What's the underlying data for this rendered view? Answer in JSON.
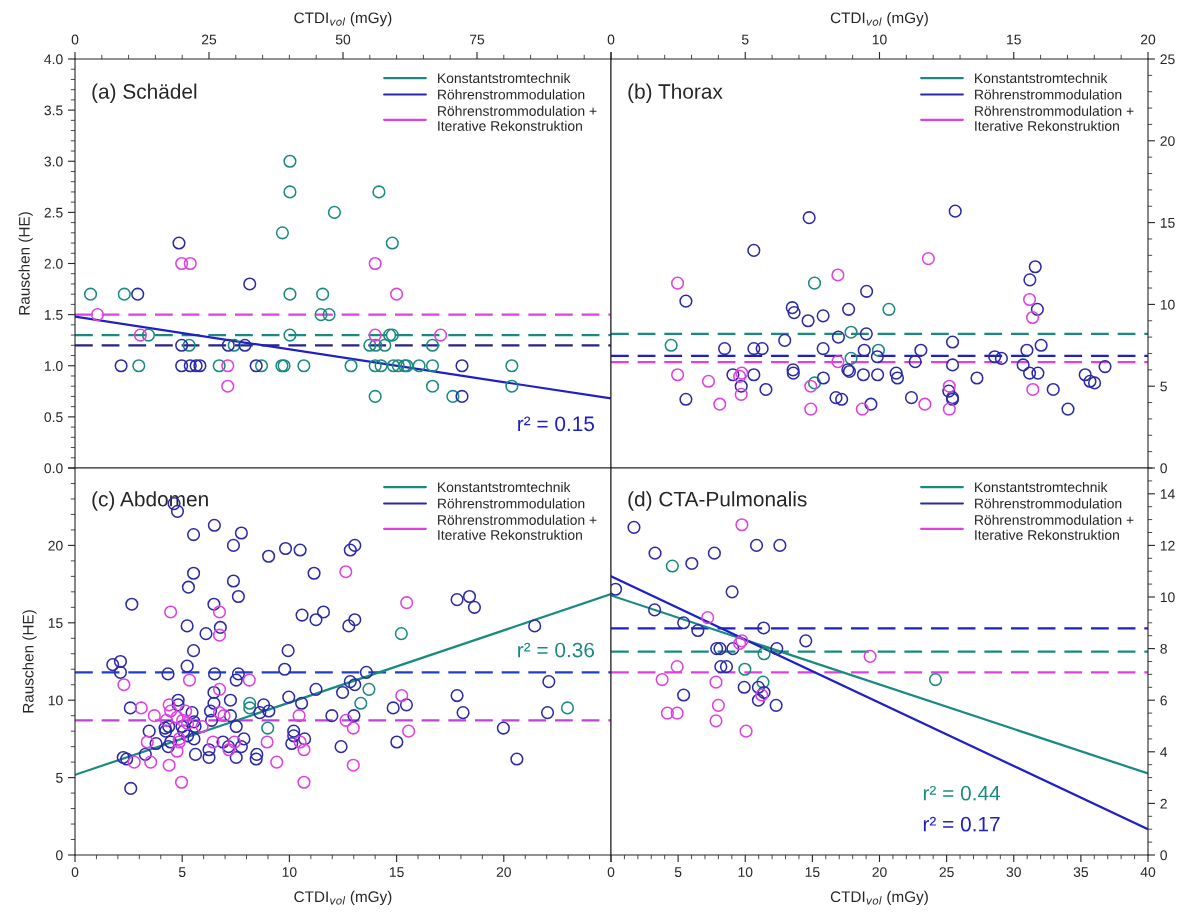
{
  "chart_data": [
    {
      "type": "scatter",
      "title": "(a) Schädel",
      "xlabel": "CTDI$_{vol}$ (mGy)",
      "ylabel": "Rauschen (HE)",
      "xlim": [
        0,
        100
      ],
      "ylim": [
        0,
        4
      ],
      "xticks": [
        0,
        25,
        50,
        75,
        {
          "value": 100,
          "label": null
        }
      ],
      "yticks": [
        {
          "value": 0,
          "label": "0.0"
        },
        {
          "value": 0.5,
          "label": "0.5"
        },
        {
          "value": 1,
          "label": "1.0"
        },
        {
          "value": 1.5,
          "label": "1.5"
        },
        {
          "value": 2,
          "label": "2.0"
        },
        {
          "value": 2.5,
          "label": "2.5"
        },
        {
          "value": 3,
          "label": "3.0"
        },
        {
          "value": 3.5,
          "label": "3.5"
        },
        {
          "value": 4,
          "label": "4.0"
        }
      ],
      "marker": "circle",
      "legend": "top right",
      "annotations": [
        "r² = 0.15"
      ],
      "series": [
        {
          "type": "scatter",
          "name": "Konstantstromtechnik",
          "color": "#1a8a80",
          "x": [
            2.9,
            9.2,
            11.9,
            13.7,
            21.3,
            26.9,
            29.7,
            34.8,
            38.6,
            39.0,
            38.7,
            40.1,
            40.1,
            40.1,
            40.1,
            42.7,
            46.2,
            45.9,
            47.4,
            48.4,
            51.5,
            55.0,
            56.1,
            56.0,
            56.0,
            56.7,
            57.1,
            57.8,
            58.7,
            59.2,
            59.2,
            59.4,
            60.3,
            61.5,
            61.9,
            64.2,
            66.7,
            66.7,
            66.7,
            70.5,
            81.5,
            81.5
          ],
          "values": [
            1.7,
            1.7,
            1.0,
            1.3,
            1.2,
            1.0,
            1.2,
            1.0,
            1.0,
            1.0,
            2.3,
            3.0,
            2.7,
            1.7,
            1.3,
            1.0,
            1.7,
            1.5,
            1.5,
            2.5,
            1.0,
            1.2,
            1.2,
            1.0,
            0.7,
            2.7,
            1.0,
            1.2,
            1.3,
            1.3,
            2.2,
            1.0,
            1.0,
            1.0,
            1.0,
            1.0,
            1.2,
            1.0,
            0.8,
            0.7,
            1.0,
            0.8
          ]
        },
        {
          "type": "scatter",
          "name": "Röhrenstrommodulation",
          "color": "#2a2aa8",
          "x": [
            8.6,
            11.7,
            19.4,
            19.9,
            19.9,
            21.5,
            22.6,
            23.3,
            28.6,
            31.7,
            32.6,
            33.8,
            72.2,
            72.2
          ],
          "values": [
            1.0,
            1.7,
            2.2,
            1.2,
            1.0,
            1.0,
            1.0,
            1.0,
            1.2,
            1.2,
            1.8,
            1.0,
            1.0,
            0.7
          ]
        },
        {
          "type": "scatter",
          "name": "Röhrenstrommodulation +\nIterative Rekonstruktion",
          "color": "#e040e0",
          "x": [
            4.2,
            12.2,
            19.9,
            21.5,
            28.5,
            28.5,
            56.0,
            56.0,
            60.0,
            68.2
          ],
          "values": [
            1.5,
            1.3,
            2.0,
            2.0,
            1.0,
            0.8,
            2.0,
            1.3,
            1.7,
            1.3
          ]
        },
        {
          "type": "line",
          "marker": "none",
          "color": "#1f1fc8",
          "x": [
            0,
            100
          ],
          "values": [
            1.48,
            0.68
          ]
        }
      ],
      "ref_lines": [
        {
          "axis": "y",
          "value": 1.5,
          "color": "#e040e0",
          "line_style": "dashed"
        },
        {
          "axis": "y",
          "value": 1.3,
          "color": "#1a8a80",
          "line_style": "dashed"
        },
        {
          "axis": "y",
          "value": 1.2,
          "color": "#23238a",
          "line_style": "dashed"
        }
      ]
    },
    {
      "type": "scatter",
      "title": "(b) Thorax",
      "xlabel": "CTDI$_{vol}$ (mGy)",
      "xlim": [
        0,
        20
      ],
      "ylim": [
        0,
        25
      ],
      "xticks": [
        0,
        5,
        10,
        15,
        20
      ],
      "yticks": [
        0,
        5,
        10,
        15,
        20,
        25
      ],
      "marker": "circle",
      "legend": "top right",
      "series": [
        {
          "type": "scatter",
          "name": "Konstantstromtechnik",
          "color": "#1a8a80",
          "x": [
            2.24,
            7.58,
            8.94,
            10.35,
            9.96,
            8.94,
            7.58
          ],
          "values": [
            7.5,
            11.3,
            8.3,
            9.7,
            7.2,
            6.7,
            5.2
          ]
        },
        {
          "type": "scatter",
          "name": "Röhrenstrommodulation",
          "color": "#2a2aa8",
          "x": [
            2.79,
            2.79,
            4.23,
            4.54,
            4.85,
            5.32,
            5.32,
            5.32,
            5.63,
            5.77,
            6.47,
            6.75,
            6.82,
            6.78,
            6.79,
            7.34,
            7.38,
            7.9,
            7.9,
            7.91,
            8.38,
            8.59,
            8.47,
            8.85,
            8.82,
            8.88,
            9.43,
            9.4,
            9.52,
            9.51,
            9.68,
            9.92,
            9.93,
            10.62,
            10.67,
            11.19,
            11.33,
            11.54,
            12.82,
            12.72,
            12.72,
            12.58,
            12.72,
            12.72,
            13.63,
            14.29,
            14.54,
            15.35,
            15.49,
            15.6,
            15.8,
            15.88,
            15.59,
            15.9,
            16.02,
            16.47,
            17.02,
            17.66,
            17.84,
            18.01,
            18.4
          ],
          "values": [
            10.2,
            4.2,
            7.3,
            5.7,
            5.0,
            13.3,
            7.3,
            5.7,
            7.3,
            4.8,
            7.8,
            9.8,
            9.5,
            6.0,
            5.8,
            9.0,
            15.3,
            9.3,
            7.3,
            5.5,
            4.3,
            4.2,
            8.0,
            9.7,
            6.0,
            5.9,
            7.2,
            5.7,
            10.8,
            8.2,
            3.9,
            6.8,
            5.7,
            5.8,
            5.5,
            4.3,
            6.5,
            7.2,
            15.7,
            7.7,
            6.3,
            4.7,
            4.3,
            4.2,
            5.5,
            6.8,
            6.7,
            6.3,
            7.2,
            11.5,
            12.3,
            9.7,
            5.8,
            5.8,
            7.5,
            4.8,
            3.6,
            5.7,
            5.3,
            5.2,
            6.2
          ]
        },
        {
          "type": "scatter",
          "name": "Röhrenstrommodulation +\nIterative Rekonstruktion",
          "color": "#e040e0",
          "x": [
            2.48,
            2.48,
            3.63,
            4.05,
            4.79,
            4.87,
            4.85,
            7.44,
            7.44,
            8.45,
            8.45,
            9.36,
            11.69,
            11.82,
            12.6,
            12.6,
            15.59,
            15.7,
            15.71
          ],
          "values": [
            11.3,
            5.7,
            5.3,
            3.9,
            5.6,
            5.8,
            4.5,
            5.0,
            3.6,
            11.8,
            6.5,
            3.6,
            3.9,
            12.8,
            5.0,
            3.6,
            10.3,
            9.2,
            4.8
          ]
        }
      ],
      "ref_lines": [
        {
          "axis": "y",
          "value": 8.2,
          "color": "#1a8a80",
          "line_style": "dashed"
        },
        {
          "axis": "y",
          "value": 6.86,
          "color": "#1f1fc8",
          "line_style": "dashed"
        },
        {
          "axis": "y",
          "value": 6.47,
          "color": "#e040e0",
          "line_style": "dashed"
        }
      ]
    },
    {
      "type": "scatter",
      "title": "(c) Abdomen",
      "xlabel": "CTDI$_{vol}$ (mGy)",
      "ylabel": "Rauschen (HE)",
      "xlim": [
        0,
        25
      ],
      "ylim": [
        0,
        25
      ],
      "xticks": [
        0,
        5,
        10,
        15,
        20,
        {
          "value": 25,
          "label": null
        }
      ],
      "yticks": [
        0,
        5,
        10,
        15,
        20,
        {
          "value": 25,
          "label": null
        }
      ],
      "marker": "circle",
      "legend": "top right",
      "annotations": [
        "r² = 0.36"
      ],
      "series": [
        {
          "type": "scatter",
          "name": "Konstantstromtechnik",
          "color": "#1a8a80",
          "x": [
            8.15,
            8.15,
            8.99,
            13.33,
            13.71,
            15.22,
            22.97
          ],
          "values": [
            9.8,
            9.5,
            8.2,
            9.8,
            10.7,
            14.3,
            9.5
          ]
        },
        {
          "type": "scatter",
          "name": "Röhrenstrommodulation",
          "color": "#2a2aa8",
          "x": [
            4.62,
            4.78,
            6.5,
            5.53,
            7.76,
            7.39,
            9.82,
            10.5,
            9.03,
            12.84,
            13.05,
            5.53,
            11.15,
            7.39,
            5.29,
            7.62,
            2.65,
            6.48,
            10.59,
            11.59,
            11.24,
            5.23,
            6.78,
            6.11,
            12.77,
            13.05,
            17.82,
            18.4,
            18.63,
            21.44,
            5.53,
            9.94,
            1.76,
            2.12,
            2.12,
            5.23,
            4.34,
            6.51,
            7.62,
            7.52,
            9.78,
            13.59,
            12.84,
            13.05,
            11.24,
            12.48,
            9.97,
            10.57,
            2.58,
            4.81,
            4.81,
            6.48,
            6.48,
            6.32,
            7.25,
            7.25,
            8.8,
            8.62,
            9.04,
            11.98,
            13.01,
            14.84,
            15.46,
            17.82,
            18.1,
            22.1,
            22.04,
            19.98,
            20.61,
            15.01,
            12.41,
            10.2,
            10.2,
            10.11,
            10.71,
            7.88,
            7.76,
            7.52,
            7.52,
            7.16,
            6.9,
            5.62,
            6.25,
            6.25,
            8.48,
            8.45,
            6.37,
            5.55,
            5.6,
            5.55,
            5.25,
            5.46,
            4.99,
            5.07,
            4.2,
            4.37,
            4.23,
            4.46,
            4.35,
            3.46,
            3.78,
            3.28,
            2.25,
            2.41,
            2.6
          ],
          "values": [
            22.7,
            22.2,
            21.3,
            20.7,
            20.8,
            20.0,
            19.8,
            19.7,
            19.3,
            19.7,
            20.0,
            18.2,
            18.2,
            17.7,
            17.3,
            16.7,
            16.2,
            16.2,
            15.5,
            15.7,
            15.2,
            14.8,
            14.7,
            14.3,
            14.8,
            15.2,
            16.5,
            16.7,
            16.0,
            14.8,
            13.2,
            13.2,
            12.3,
            12.5,
            11.8,
            12.2,
            11.7,
            11.7,
            11.7,
            11.3,
            12.0,
            11.8,
            11.2,
            11.0,
            10.7,
            10.5,
            10.2,
            9.8,
            9.5,
            10.0,
            9.7,
            10.5,
            9.8,
            9.3,
            10.0,
            9.0,
            9.7,
            9.2,
            9.3,
            9.0,
            9.0,
            9.5,
            9.7,
            10.3,
            9.2,
            11.2,
            9.2,
            8.2,
            6.2,
            7.3,
            7.0,
            8.0,
            7.7,
            7.2,
            7.5,
            7.5,
            7.0,
            8.3,
            6.3,
            7.0,
            7.3,
            6.5,
            6.8,
            6.3,
            6.5,
            6.2,
            8.7,
            8.6,
            8.3,
            7.5,
            7.7,
            9.2,
            8.3,
            8.0,
            8.2,
            8.3,
            8.0,
            7.3,
            7.0,
            8.0,
            7.2,
            6.5,
            6.3,
            6.2,
            4.3
          ]
        },
        {
          "type": "scatter",
          "name": "Röhrenstrommodulation +\nIterative Rekonstruktion",
          "color": "#e040e0",
          "x": [
            2.28,
            3.09,
            3.7,
            4.46,
            4.39,
            4.26,
            4.46,
            4.76,
            5.16,
            5.34,
            5.02,
            5.25,
            5.93,
            6.74,
            6.74,
            6.74,
            6.74,
            6.95,
            8.13,
            6.44,
            7.44,
            7.18,
            3.37,
            3.53,
            2.76,
            4.39,
            4.76,
            4.86,
            4.86,
            4.97,
            8.96,
            9.41,
            10.45,
            10.5,
            10.68,
            10.68,
            12.63,
            12.64,
            12.98,
            12.98,
            15.24,
            15.47,
            15.56
          ],
          "values": [
            11.0,
            9.5,
            9.0,
            15.7,
            9.7,
            8.7,
            9.3,
            8.9,
            9.3,
            11.3,
            8.7,
            8.5,
            8.3,
            15.7,
            14.2,
            10.7,
            9.2,
            9.0,
            11.3,
            7.3,
            7.3,
            6.8,
            7.3,
            6.0,
            6.0,
            5.8,
            6.7,
            7.5,
            7.3,
            4.7,
            7.3,
            6.0,
            9.0,
            7.3,
            6.8,
            4.7,
            18.3,
            8.7,
            8.2,
            5.8,
            10.3,
            16.3,
            8.0
          ]
        },
        {
          "type": "line",
          "marker": "none",
          "color": "#1a8a80",
          "x": [
            0,
            25
          ],
          "values": [
            5.18,
            16.85
          ]
        }
      ],
      "ref_lines": [
        {
          "axis": "y",
          "value": 11.8,
          "color": "#1f3fc8",
          "line_style": "dashed"
        },
        {
          "axis": "y",
          "value": 8.7,
          "color": "#c040e0",
          "line_style": "dashed"
        }
      ]
    },
    {
      "type": "scatter",
      "title": "(d) CTA-Pulmonalis",
      "xlabel": "CTDI$_{vol}$ (mGy)",
      "xlim": [
        0,
        40
      ],
      "ylim": [
        0,
        15
      ],
      "xticks": [
        0,
        5,
        10,
        15,
        20,
        25,
        30,
        35,
        40
      ],
      "yticks": [
        0,
        2,
        4,
        6,
        8,
        10,
        12,
        14
      ],
      "marker": "circle",
      "legend": "top right",
      "annotations": [
        "r² = 0.44",
        "r² = 0.17"
      ],
      "series": [
        {
          "type": "scatter",
          "name": "Konstantstromtechnik",
          "color": "#1a8a80",
          "x": [
            4.57,
            11.4,
            9.97,
            11.32,
            24.17
          ],
          "values": [
            11.2,
            7.8,
            7.2,
            6.7,
            6.8
          ]
        },
        {
          "type": "scatter",
          "name": "Röhrenstrommodulation",
          "color": "#2a2aa8",
          "x": [
            1.71,
            3.28,
            6.02,
            7.7,
            10.84,
            12.58,
            0.34,
            9.02,
            3.25,
            5.41,
            6.47,
            11.37,
            14.51,
            7.87,
            8.12,
            9.08,
            12.35,
            8.18,
            8.6,
            9.92,
            10.98,
            11.4,
            10.98,
            12.3,
            5.41
          ],
          "values": [
            12.7,
            11.7,
            11.3,
            11.7,
            12.0,
            12.0,
            10.3,
            10.2,
            9.5,
            9.0,
            8.7,
            8.8,
            8.3,
            8.0,
            8.0,
            8.0,
            8.0,
            7.3,
            7.3,
            6.5,
            6.5,
            6.3,
            6.0,
            5.8,
            6.2
          ]
        },
        {
          "type": "scatter",
          "name": "Röhrenstrommodulation +\nIterative Rekonstruktion",
          "color": "#e040e0",
          "x": [
            9.75,
            7.2,
            9.75,
            9.58,
            4.93,
            3.81,
            7.82,
            11.23,
            8.0,
            4.2,
            4.93,
            7.82,
            10.06,
            19.3
          ],
          "values": [
            12.8,
            9.2,
            8.3,
            8.2,
            7.3,
            6.8,
            6.7,
            6.2,
            5.8,
            5.5,
            5.5,
            5.2,
            4.8,
            7.7
          ]
        },
        {
          "type": "line",
          "marker": "none",
          "color": "#1a8a80",
          "x": [
            0,
            40
          ],
          "values": [
            10.06,
            3.16
          ]
        },
        {
          "type": "line",
          "marker": "none",
          "color": "#1f1fc8",
          "x": [
            0,
            40
          ],
          "values": [
            10.8,
            1.0
          ]
        }
      ],
      "ref_lines": [
        {
          "axis": "y",
          "value": 8.78,
          "color": "#1f1fc8",
          "line_style": "dashed"
        },
        {
          "axis": "y",
          "value": 7.88,
          "color": "#1a8a80",
          "line_style": "dashed"
        },
        {
          "axis": "y",
          "value": 7.08,
          "color": "#e040e0",
          "line_style": "dashed"
        }
      ]
    }
  ]
}
